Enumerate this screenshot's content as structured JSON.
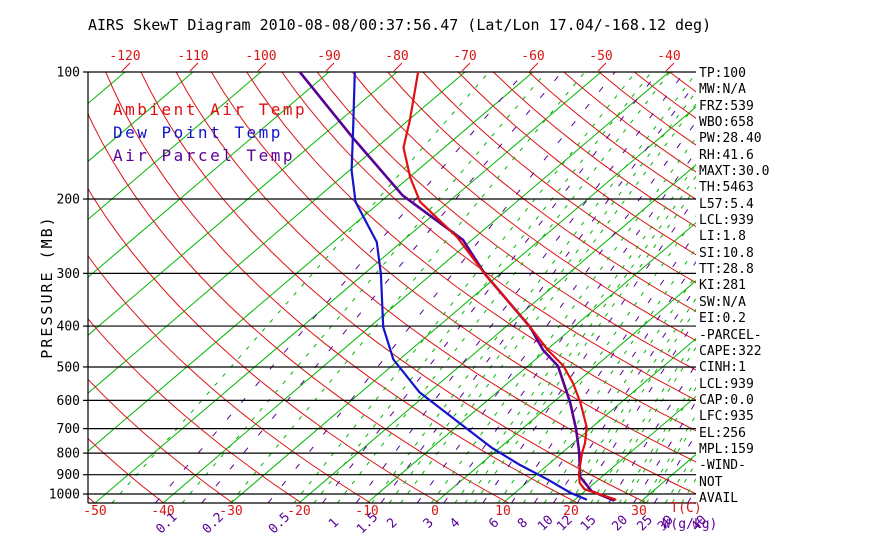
{
  "title": "AIRS SkewT Diagram 2010-08-08/00:37:56.47 (Lat/Lon 17.04/-168.12 deg)",
  "legend": {
    "ambient": "Ambient Air Temp",
    "dewpoint": "Dew Point Temp",
    "parcel": "Air Parcel Temp"
  },
  "stats": [
    "TP:100",
    "MW:N/A",
    "FRZ:539",
    "WBO:658",
    "PW:28.40",
    "RH:41.6",
    "MAXT:30.0",
    "TH:5463",
    "L57:5.4",
    "LCL:939",
    "LI:1.8",
    "SI:10.8",
    "TT:28.8",
    "KI:281",
    "SW:N/A",
    "EI:0.2",
    "-PARCEL-",
    "CAPE:322",
    "CINH:1",
    "LCL:939",
    "CAP:0.0",
    "LFC:935",
    "EL:256",
    "MPL:159",
    "-WIND-",
    "NOT",
    "AVAIL"
  ],
  "axes": {
    "pressure_label": "PRESSURE (MB)",
    "pressure_ticks": [
      100,
      200,
      300,
      400,
      500,
      600,
      700,
      800,
      900,
      1000
    ],
    "top_temp_ticks": [
      -120,
      -110,
      -100,
      -90,
      -80,
      -70,
      -60,
      -50,
      -40
    ],
    "bottom_temp_ticks": [
      -50,
      -40,
      -30,
      -20,
      -10,
      0,
      10,
      20,
      30
    ],
    "temp_unit_label": "T(C)",
    "mixing_ticks": [
      0.1,
      0.2,
      0.5,
      1,
      1.5,
      2,
      3,
      4,
      6,
      8,
      10,
      12,
      15,
      20,
      25,
      30,
      40
    ],
    "mixing_unit_label": "W(g/kg)"
  },
  "colors": {
    "isotherm_green": "#00b400",
    "adiabat_red": "#dc1414",
    "mixing_purple": "#5a0096",
    "ambient_red": "#e01010",
    "dewpoint_blue": "#1414cc",
    "parcel_purple": "#5a0096",
    "frame_black": "#000000"
  },
  "chart_data": {
    "type": "line",
    "title": "AIRS SkewT Diagram 2010-08-08/00:37:56.47 (Lat/Lon 17.04/-168.12 deg)",
    "xlabel": "T(C)",
    "ylabel": "PRESSURE (MB)",
    "x_range_bottom_axis_c": [
      -50,
      38
    ],
    "pressure_range_mb": [
      100,
      1050
    ],
    "grid": {
      "isotherms_c": {
        "min": -160,
        "max": 40,
        "step": 10
      },
      "dry_adiabats_theta_k": {
        "min": 220,
        "max": 480,
        "step": 10
      },
      "mixing_ratio_labeled_gkg": [
        0.1,
        0.2,
        0.5,
        1,
        1.5,
        2,
        3,
        4,
        6,
        8,
        10,
        12,
        15,
        20,
        25,
        30,
        40
      ],
      "mixing_ratio_minor_gkg": [
        0.05,
        0.15,
        0.3,
        0.7,
        0.9,
        1.2,
        1.8,
        2.2,
        2.5,
        3.5,
        4.5,
        5,
        5.5,
        7,
        9,
        11,
        13,
        14,
        17,
        18,
        22,
        23,
        27,
        28,
        33,
        35,
        38,
        45,
        50
      ]
    },
    "series": [
      {
        "name": "Ambient Air Temp",
        "color": "#e01010",
        "points_p_mb_t_c": [
          [
            1030,
            25.9
          ],
          [
            974,
            19.6
          ],
          [
            941,
            17.8
          ],
          [
            895,
            16.1
          ],
          [
            800,
            13.0
          ],
          [
            757,
            11.7
          ],
          [
            694,
            9.2
          ],
          [
            605,
            3.9
          ],
          [
            546,
            -0.4
          ],
          [
            497,
            -4.8
          ],
          [
            456,
            -9.8
          ],
          [
            402,
            -16.4
          ],
          [
            301,
            -32.2
          ],
          [
            246,
            -42.7
          ],
          [
            203,
            -54.2
          ],
          [
            178,
            -59.8
          ],
          [
            151,
            -66.0
          ],
          [
            130,
            -69.8
          ],
          [
            100,
            -76.9
          ]
        ]
      },
      {
        "name": "Dew Point Temp",
        "color": "#1414cc",
        "points_p_mb_t_c": [
          [
            1030,
            21.6
          ],
          [
            993,
            18.1
          ],
          [
            925,
            12.6
          ],
          [
            853,
            5.9
          ],
          [
            778,
            -1.1
          ],
          [
            675,
            -10.6
          ],
          [
            574,
            -21.4
          ],
          [
            480,
            -30.9
          ],
          [
            402,
            -38.0
          ],
          [
            301,
            -47.5
          ],
          [
            253,
            -53.6
          ],
          [
            203,
            -63.7
          ],
          [
            171,
            -69.7
          ],
          [
            137,
            -76.5
          ],
          [
            100,
            -86.2
          ]
        ]
      },
      {
        "name": "Air Parcel Temp",
        "color": "#5a0096",
        "points_p_mb_t_c": [
          [
            1035,
            25.8
          ],
          [
            985,
            21.0
          ],
          [
            910,
            16.8
          ],
          [
            795,
            12.4
          ],
          [
            702,
            8.0
          ],
          [
            605,
            2.4
          ],
          [
            497,
            -5.6
          ],
          [
            456,
            -10.5
          ],
          [
            402,
            -16.4
          ],
          [
            301,
            -32.2
          ],
          [
            250,
            -41.3
          ],
          [
            196,
            -57.9
          ],
          [
            143,
            -75.2
          ],
          [
            100,
            -94.3
          ]
        ]
      }
    ]
  }
}
